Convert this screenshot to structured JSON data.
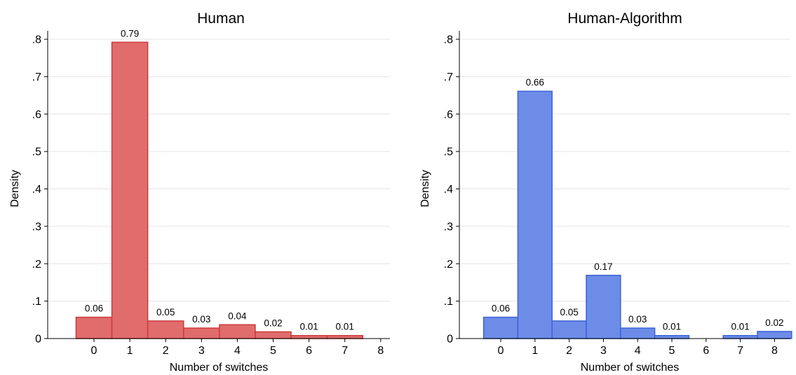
{
  "chart_data": [
    {
      "type": "bar",
      "title": "Human",
      "xlabel": "Number of switches",
      "ylabel": "Density",
      "categories": [
        0,
        1,
        2,
        3,
        4,
        5,
        6,
        7
      ],
      "values": [
        0.057,
        0.792,
        0.047,
        0.028,
        0.037,
        0.018,
        0.008,
        0.008
      ],
      "bar_labels": [
        "0.06",
        "0.79",
        "0.05",
        "0.03",
        "0.04",
        "0.02",
        "0.01",
        "0.01"
      ],
      "x_ticks": [
        "0",
        "1",
        "2",
        "3",
        "4",
        "5",
        "6",
        "7",
        "8"
      ],
      "y_ticks": [
        "0",
        ".1",
        ".2",
        ".3",
        ".4",
        ".5",
        ".6",
        ".7",
        ".8"
      ],
      "ylim": [
        0,
        0.8
      ],
      "xlim": [
        -0.5,
        8
      ],
      "grid": true,
      "bar_fill": "#e06c6c",
      "bar_stroke": "#cc3b3b"
    },
    {
      "type": "bar",
      "title": "Human-Algorithm",
      "xlabel": "Number of switches",
      "ylabel": "Density",
      "categories": [
        0,
        1,
        2,
        3,
        4,
        5,
        7,
        8
      ],
      "values": [
        0.057,
        0.661,
        0.047,
        0.169,
        0.028,
        0.008,
        0.008,
        0.019
      ],
      "bar_labels": [
        "0.06",
        "0.66",
        "0.05",
        "0.17",
        "0.03",
        "0.01",
        "0.01",
        "0.02"
      ],
      "x_ticks": [
        "0",
        "1",
        "2",
        "3",
        "4",
        "5",
        "6",
        "7",
        "8"
      ],
      "y_ticks": [
        "0",
        ".1",
        ".2",
        ".3",
        ".4",
        ".5",
        ".6",
        ".7",
        ".8"
      ],
      "ylim": [
        0,
        0.8
      ],
      "xlim": [
        -0.5,
        8.5
      ],
      "grid": true,
      "bar_fill": "#6d8ce8",
      "bar_stroke": "#3c63d6"
    }
  ]
}
